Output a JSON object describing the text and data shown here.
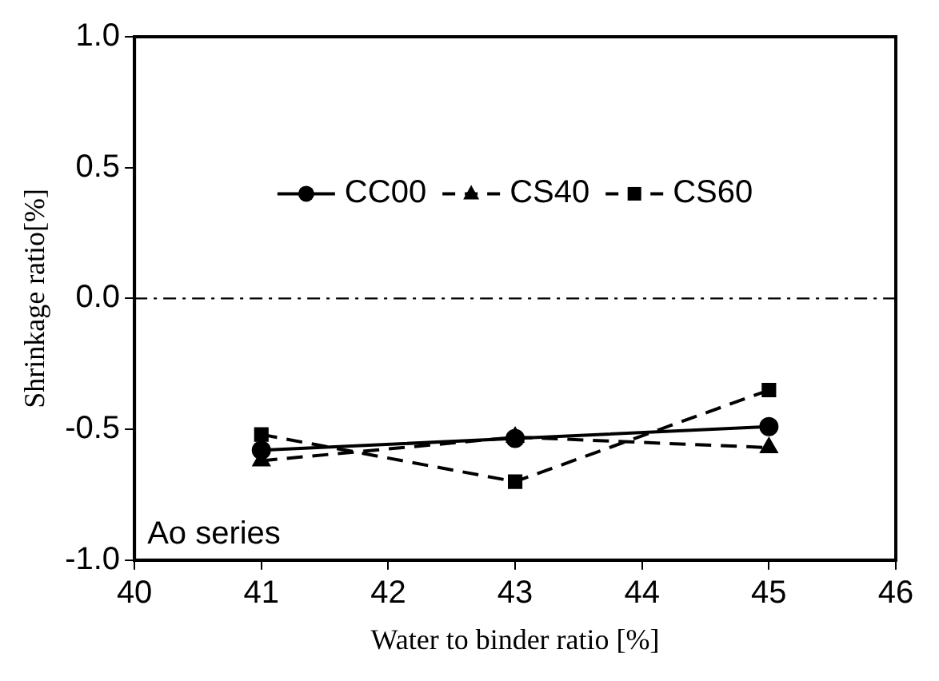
{
  "chart_data": {
    "type": "line",
    "xlabel": "Water to binder ratio [%]",
    "ylabel": "Shrinkage ratio[%]",
    "x": [
      41,
      43,
      45
    ],
    "series": [
      {
        "name": "CC00",
        "color": "#000000",
        "values": [
          -0.58,
          -0.535,
          -0.49
        ],
        "marker": "circle",
        "line_style": "solid"
      },
      {
        "name": "CS40",
        "color": "#000000",
        "values": [
          -0.62,
          -0.53,
          -0.57
        ],
        "marker": "triangle",
        "line_style": "dashed"
      },
      {
        "name": "CS60",
        "color": "#000000",
        "values": [
          -0.52,
          -0.7,
          -0.35
        ],
        "marker": "square",
        "line_style": "dashed"
      }
    ],
    "xlim": [
      40,
      46
    ],
    "xticks": [
      40,
      41,
      42,
      43,
      44,
      45,
      46
    ],
    "ylim": [
      -1.0,
      1.0
    ],
    "yticks": [
      {
        "value": -1.0,
        "label": "-1.0"
      },
      {
        "value": -0.5,
        "label": "-0.5"
      },
      {
        "value": 0,
        "label": "0.0"
      },
      {
        "value": 0.5,
        "label": "0.5"
      },
      {
        "value": 1.0,
        "label": "1.0"
      }
    ],
    "ref_lines": [
      {
        "axis": "y",
        "value": 0,
        "line_style": "dashdot",
        "color": "#000000"
      }
    ],
    "annotations": [
      "Ao series"
    ],
    "legend": "top",
    "grid": false
  }
}
